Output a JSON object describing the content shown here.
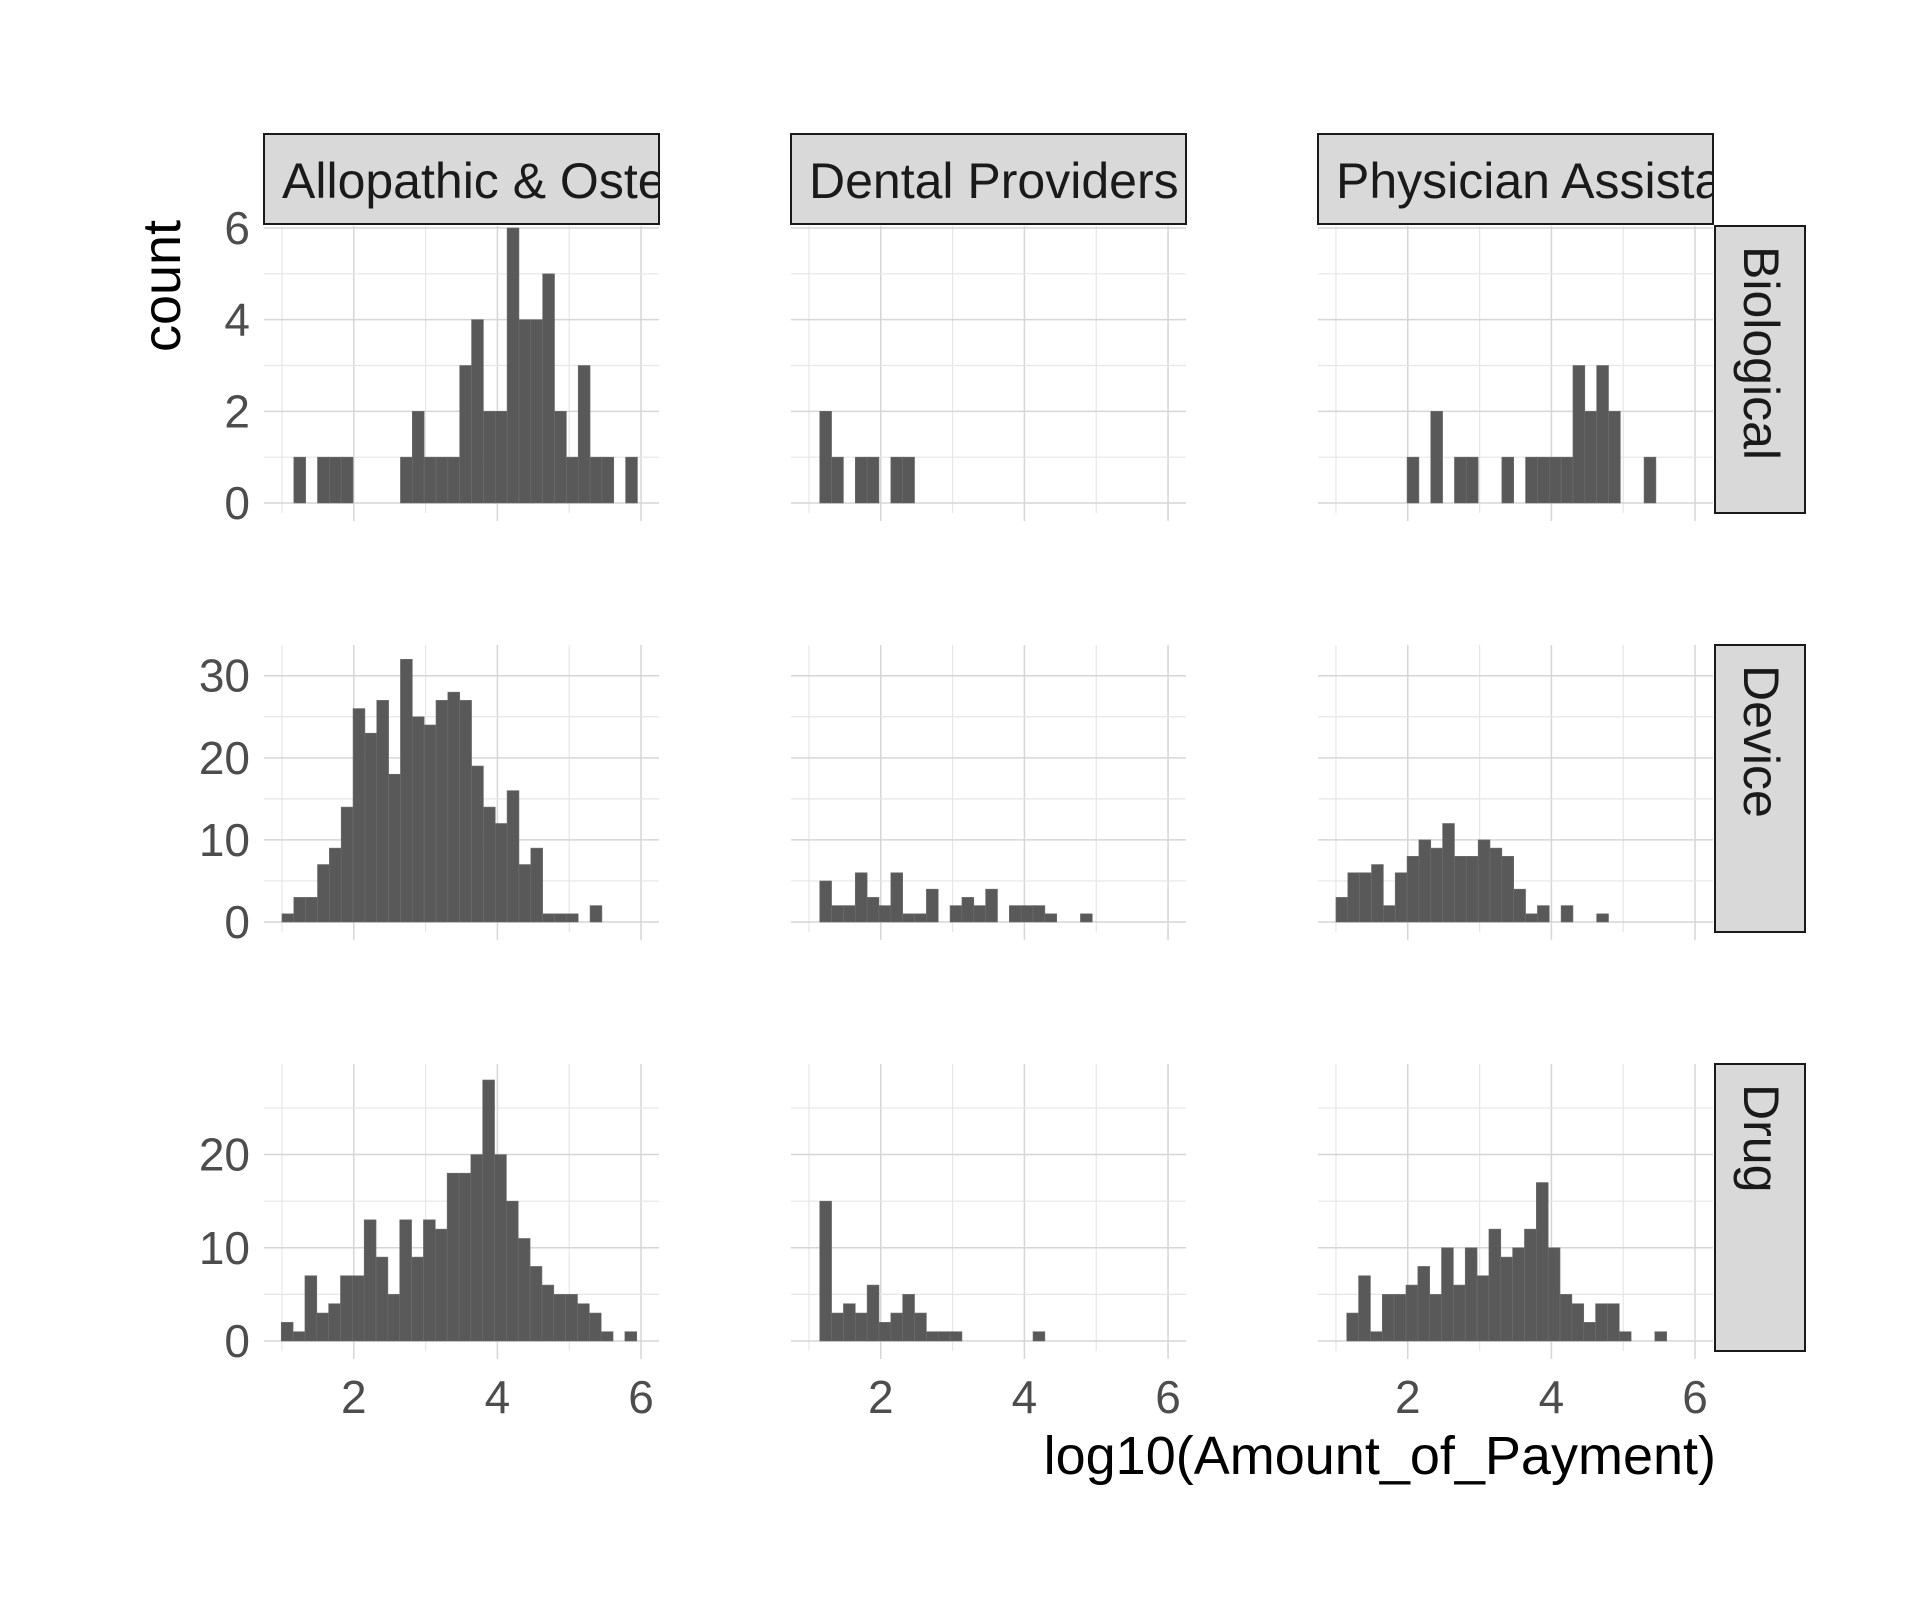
{
  "chart_data": {
    "type": "bar",
    "subtype": "faceted-histogram",
    "xlabel": "log10(Amount_of_Payment)",
    "ylabel": "count",
    "grid": true,
    "bin_width": 0.165,
    "xlim": [
      0.75,
      6.25
    ],
    "x_ticks": [
      2,
      4,
      6
    ],
    "columns": [
      "Allopathic & Osteopathic Physicians",
      "Dental Providers",
      "Physician Assistants"
    ],
    "rows": [
      {
        "name": "Biological",
        "ylim": [
          0,
          6
        ],
        "y_ticks": [
          0,
          2,
          4,
          6
        ]
      },
      {
        "name": "Device",
        "ylim": [
          0,
          33.5
        ],
        "y_ticks": [
          0,
          10,
          20,
          30
        ]
      },
      {
        "name": "Drug",
        "ylim": [
          0,
          29.5
        ],
        "y_ticks": [
          0,
          10,
          20
        ]
      }
    ],
    "facets": [
      {
        "row": "Biological",
        "column": "Allopathic & Osteopathic Physicians",
        "start": 1.0,
        "counts": [
          0,
          1,
          0,
          1,
          1,
          1,
          0,
          0,
          0,
          0,
          1,
          2,
          1,
          1,
          1,
          3,
          4,
          2,
          2,
          6,
          4,
          4,
          5,
          2,
          1,
          3,
          1,
          1,
          0,
          1
        ]
      },
      {
        "row": "Biological",
        "column": "Dental Providers",
        "start": 1.15,
        "counts": [
          2,
          1,
          0,
          1,
          1,
          0,
          1,
          1
        ]
      },
      {
        "row": "Biological",
        "column": "Physician Assistants",
        "start": 1.99,
        "counts": [
          1,
          0,
          2,
          0,
          1,
          1,
          0,
          0,
          1,
          0,
          1,
          1,
          1,
          1,
          3,
          2,
          3,
          2,
          0,
          0,
          1
        ]
      },
      {
        "row": "Device",
        "column": "Allopathic & Osteopathic Physicians",
        "start": 1.0,
        "counts": [
          1,
          3,
          3,
          7,
          9,
          14,
          26,
          23,
          27,
          18,
          32,
          25,
          24,
          27,
          28,
          27,
          19,
          14,
          12,
          16,
          7,
          9,
          1,
          1,
          1,
          0,
          2
        ]
      },
      {
        "row": "Device",
        "column": "Dental Providers",
        "start": 1.15,
        "counts": [
          5,
          2,
          2,
          6,
          3,
          2,
          6,
          1,
          1,
          4,
          0,
          2,
          3,
          2,
          4,
          0,
          2,
          2,
          2,
          1,
          0,
          0,
          1
        ]
      },
      {
        "row": "Device",
        "column": "Physician Assistants",
        "start": 1.0,
        "counts": [
          3,
          6,
          6,
          7,
          2,
          6,
          8,
          10,
          9,
          12,
          8,
          8,
          10,
          9,
          8,
          4,
          1,
          2,
          0,
          2,
          0,
          0,
          1
        ]
      },
      {
        "row": "Drug",
        "column": "Allopathic & Osteopathic Physicians",
        "start": 0.99,
        "counts": [
          2,
          1,
          7,
          3,
          4,
          7,
          7,
          13,
          9,
          5,
          13,
          9,
          13,
          12,
          18,
          18,
          20,
          28,
          20,
          15,
          11,
          8,
          6,
          5,
          5,
          4,
          3,
          1,
          0,
          1
        ]
      },
      {
        "row": "Drug",
        "column": "Dental Providers",
        "start": 1.15,
        "counts": [
          15,
          3,
          4,
          3,
          6,
          2,
          3,
          5,
          3,
          1,
          1,
          1,
          0,
          0,
          0,
          0,
          0,
          0,
          1
        ]
      },
      {
        "row": "Drug",
        "column": "Physician Assistants",
        "start": 1.15,
        "counts": [
          3,
          7,
          1,
          5,
          5,
          6,
          8,
          5,
          10,
          6,
          10,
          7,
          12,
          9,
          10,
          12,
          17,
          10,
          5,
          4,
          2,
          4,
          4,
          1,
          0,
          0,
          1
        ]
      }
    ]
  },
  "strips": {
    "col1": "Allopathic & Osteopathic Physicians",
    "col2": "Dental Providers",
    "col3": "Physician Assistants",
    "row1": "Biological",
    "row2": "Device",
    "row3": "Drug"
  },
  "axis": {
    "x_title": "log10(Amount_of_Payment)",
    "y_title": "count"
  }
}
